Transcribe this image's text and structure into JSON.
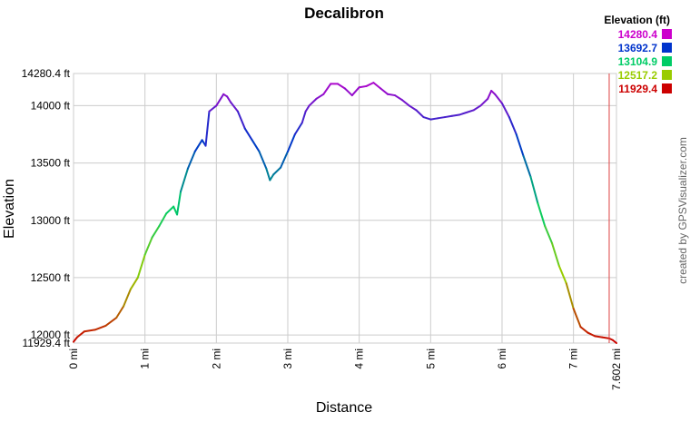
{
  "chart_data": {
    "type": "line",
    "title": "Decalibron",
    "xlabel": "Distance",
    "ylabel": "Elevation",
    "x_unit": "mi",
    "y_unit": "ft",
    "xlim": [
      0,
      7.602
    ],
    "ylim": [
      11929.4,
      14280.4
    ],
    "x_ticks": [
      "0 mi",
      "1 mi",
      "2 mi",
      "3 mi",
      "4 mi",
      "5 mi",
      "6 mi",
      "7 mi",
      "7.602 mi"
    ],
    "y_ticks": [
      "11929.4 ft",
      "12000 ft",
      "12500 ft",
      "13000 ft",
      "13500 ft",
      "14000 ft",
      "14280.4 ft"
    ],
    "grid": true,
    "marker_line_x": 7.5,
    "legend": {
      "title": "Elevation (ft)",
      "placement": "top-right",
      "entries": [
        {
          "label": "14280.4",
          "color": "#cc00cc"
        },
        {
          "label": "13692.7",
          "color": "#0033cc"
        },
        {
          "label": "13104.9",
          "color": "#00cc66"
        },
        {
          "label": "12517.2",
          "color": "#99cc00"
        },
        {
          "label": "11929.4",
          "color": "#cc0000"
        }
      ]
    },
    "series": [
      {
        "x": [
          0,
          0.05,
          0.15,
          0.3,
          0.45,
          0.6,
          0.7,
          0.8,
          0.9,
          1.0,
          1.1,
          1.2,
          1.3,
          1.4,
          1.45,
          1.5,
          1.6,
          1.7,
          1.8,
          1.85,
          1.9,
          2.0,
          2.1,
          2.15,
          2.2,
          2.3,
          2.4,
          2.5,
          2.6,
          2.7,
          2.75,
          2.8,
          2.9,
          3.0,
          3.1,
          3.2,
          3.25,
          3.3,
          3.4,
          3.5,
          3.6,
          3.7,
          3.8,
          3.9,
          4.0,
          4.1,
          4.2,
          4.3,
          4.4,
          4.5,
          4.6,
          4.7,
          4.8,
          4.9,
          5.0,
          5.1,
          5.2,
          5.3,
          5.4,
          5.5,
          5.6,
          5.7,
          5.8,
          5.85,
          5.9,
          6.0,
          6.1,
          6.2,
          6.3,
          6.4,
          6.5,
          6.6,
          6.7,
          6.8,
          6.9,
          7.0,
          7.1,
          7.2,
          7.3,
          7.4,
          7.5,
          7.55,
          7.602
        ],
        "y": [
          11940,
          11980,
          12030,
          12045,
          12080,
          12150,
          12250,
          12400,
          12500,
          12700,
          12850,
          12950,
          13060,
          13120,
          13050,
          13250,
          13450,
          13600,
          13700,
          13650,
          13950,
          14000,
          14100,
          14080,
          14030,
          13950,
          13800,
          13700,
          13600,
          13450,
          13350,
          13400,
          13460,
          13600,
          13750,
          13850,
          13950,
          14000,
          14060,
          14100,
          14190,
          14190,
          14150,
          14090,
          14160,
          14170,
          14200,
          14150,
          14100,
          14090,
          14050,
          14000,
          13960,
          13900,
          13880,
          13890,
          13900,
          13910,
          13920,
          13940,
          13960,
          14000,
          14060,
          14130,
          14100,
          14020,
          13900,
          13750,
          13560,
          13380,
          13150,
          12950,
          12800,
          12600,
          12450,
          12230,
          12070,
          12020,
          11990,
          11980,
          11970,
          11955,
          11929.4
        ]
      }
    ]
  },
  "credit_text": "created by GPSVisualizer.com"
}
